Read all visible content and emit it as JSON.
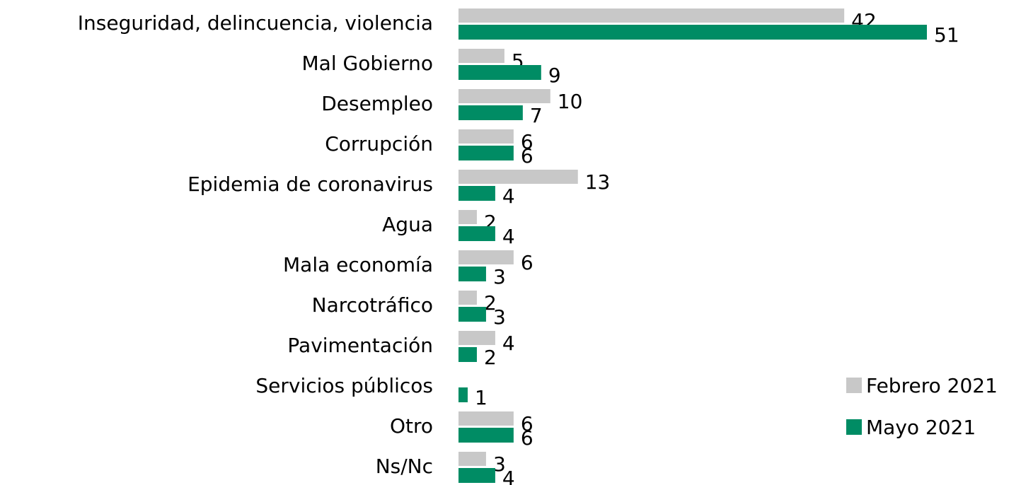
{
  "chart_data": {
    "type": "bar",
    "orientation": "horizontal",
    "categories": [
      "Inseguridad, delincuencia, violencia",
      "Mal Gobierno",
      "Desempleo",
      "Corrupción",
      "Epidemia de coronavirus",
      "Agua",
      "Mala economía",
      "Narcotráfico",
      "Pavimentación",
      "Servicios públicos",
      "Otro",
      "Ns/Nc"
    ],
    "series": [
      {
        "name": "Febrero 2021",
        "color": "#c8c8c8",
        "values": [
          42,
          5,
          10,
          6,
          13,
          2,
          6,
          2,
          4,
          null,
          6,
          3
        ]
      },
      {
        "name": "Mayo 2021",
        "color": "#008c64",
        "values": [
          51,
          9,
          7,
          6,
          4,
          4,
          3,
          3,
          2,
          1,
          6,
          4
        ]
      }
    ],
    "legend": "lower right"
  }
}
